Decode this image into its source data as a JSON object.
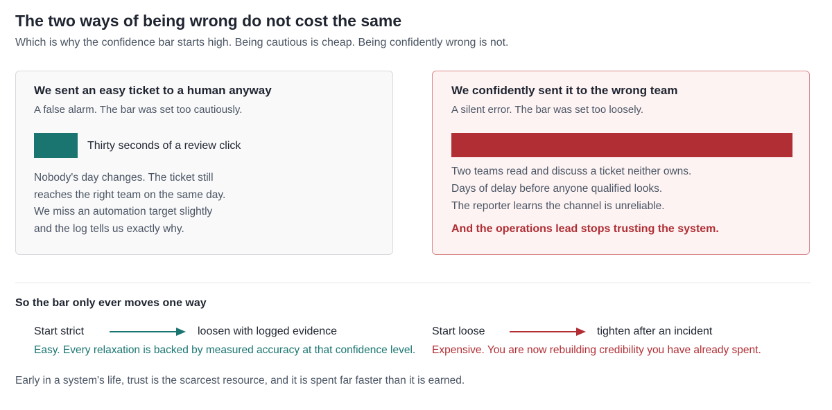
{
  "header": {
    "title": "The two ways of being wrong do not cost the same",
    "subtitle": "Which is why the confidence bar starts high. Being cautious is cheap. Being confidently wrong is not."
  },
  "cards": [
    {
      "title": "We sent an easy ticket to a human anyway",
      "subtitle": "A false alarm. The bar was set too cautiously.",
      "bar_label": "Thirty seconds of a review click",
      "lines": [
        "Nobody's day changes. The ticket still",
        "reaches the right team on the same day.",
        "We miss an automation target slightly",
        "and the log tells us exactly why."
      ]
    },
    {
      "title": "We confidently sent it to the wrong team",
      "subtitle": "A silent error. The bar was set too loosely.",
      "lines": [
        "Two teams read and discuss a ticket neither owns.",
        "Days of delay before anyone qualified looks.",
        "The reporter learns the channel is unreliable."
      ],
      "emphasis": "And the operations lead stops trusting the system."
    }
  ],
  "section": {
    "title": "So the bar only ever moves one way",
    "paths": [
      {
        "from": "Start strict",
        "to": "loosen with logged evidence",
        "note": "Easy. Every relaxation is backed by measured accuracy at that confidence level."
      },
      {
        "from": "Start loose",
        "to": "tighten after an incident",
        "note": "Expensive. You are now rebuilding credibility you have already spent."
      }
    ]
  },
  "footer": "Early in a system's life, trust is the scarcest resource, and it is spent far faster than it is earned."
}
